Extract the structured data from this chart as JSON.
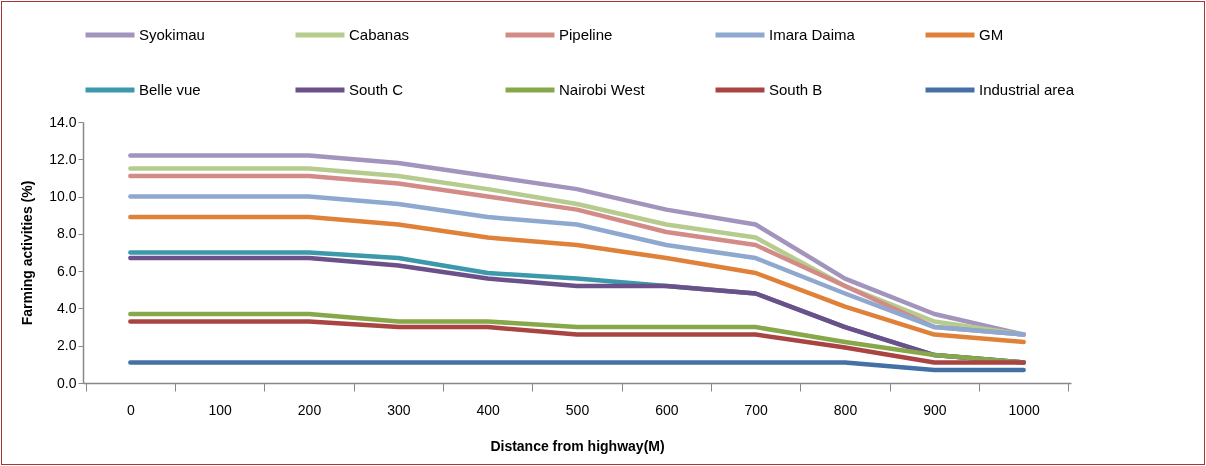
{
  "chart_data": {
    "type": "line",
    "xlabel": "Distance from highway(M)",
    "ylabel": "Farming activities (%)",
    "categories": [
      "0",
      "100",
      "200",
      "300",
      "400",
      "500",
      "600",
      "700",
      "800",
      "900",
      "1000"
    ],
    "ylim": [
      0,
      14
    ],
    "yticks": [
      {
        "value": 0,
        "label": "0.0"
      },
      {
        "value": 2,
        "label": "2.0"
      },
      {
        "value": 4,
        "label": "4.0"
      },
      {
        "value": 6,
        "label": "6.0"
      },
      {
        "value": 8,
        "label": "8.0"
      },
      {
        "value": 10,
        "label": "10.0"
      },
      {
        "value": 12,
        "label": "12.0"
      },
      {
        "value": 14,
        "label": "14.0"
      }
    ],
    "grid": false,
    "legend": "top",
    "marker": "none",
    "line_style": "solid",
    "series": [
      {
        "name": "Syokimau",
        "color": "#a294bc",
        "values": [
          12.2,
          12.2,
          12.2,
          11.8,
          11.1,
          10.4,
          9.3,
          8.5,
          5.6,
          3.7,
          2.6
        ]
      },
      {
        "name": "Cabanas",
        "color": "#b5cc8e",
        "values": [
          11.5,
          11.5,
          11.5,
          11.1,
          10.4,
          9.6,
          8.5,
          7.8,
          5.2,
          3.3,
          2.6
        ]
      },
      {
        "name": "Pipeline",
        "color": "#d38b88",
        "values": [
          11.1,
          11.1,
          11.1,
          10.7,
          10.0,
          9.3,
          8.1,
          7.4,
          5.2,
          3.0,
          2.6
        ]
      },
      {
        "name": "Imara Daima",
        "color": "#8ea8d0",
        "values": [
          10.0,
          10.0,
          10.0,
          9.6,
          8.9,
          8.5,
          7.4,
          6.7,
          4.8,
          3.0,
          2.6
        ]
      },
      {
        "name": "GM",
        "color": "#e0813a",
        "values": [
          8.9,
          8.9,
          8.9,
          8.5,
          7.8,
          7.4,
          6.7,
          5.9,
          4.1,
          2.6,
          2.2
        ]
      },
      {
        "name": "Belle vue",
        "color": "#3c98ab",
        "values": [
          7.0,
          7.0,
          7.0,
          6.7,
          5.9,
          5.6,
          5.2,
          4.8,
          3.0,
          1.5,
          1.1
        ]
      },
      {
        "name": "South C",
        "color": "#6b5089",
        "values": [
          6.7,
          6.7,
          6.7,
          6.3,
          5.6,
          5.2,
          5.2,
          4.8,
          3.0,
          1.5,
          1.1
        ]
      },
      {
        "name": "Nairobi West",
        "color": "#87a84a",
        "values": [
          3.7,
          3.7,
          3.7,
          3.3,
          3.3,
          3.0,
          3.0,
          3.0,
          2.2,
          1.5,
          1.1
        ]
      },
      {
        "name": "South B",
        "color": "#a94442",
        "values": [
          3.3,
          3.3,
          3.3,
          3.0,
          3.0,
          2.6,
          2.6,
          2.6,
          1.9,
          1.1,
          1.1
        ]
      },
      {
        "name": "Industrial area",
        "color": "#4470a6",
        "values": [
          1.1,
          1.1,
          1.1,
          1.1,
          1.1,
          1.1,
          1.1,
          1.1,
          1.1,
          0.7,
          0.7
        ]
      }
    ]
  }
}
